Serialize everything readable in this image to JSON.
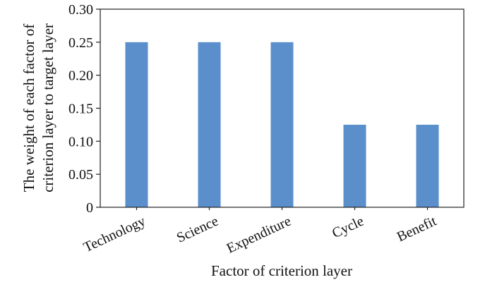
{
  "chart_data": {
    "type": "bar",
    "categories": [
      "Technology",
      "Science",
      "Expenditure",
      "Cycle",
      "Benefit"
    ],
    "values": [
      0.25,
      0.25,
      0.25,
      0.125,
      0.125
    ],
    "xlabel": "Factor of criterion layer",
    "ylabel_lines": [
      "The weight of each factor of",
      "criterion layer to target layer"
    ],
    "ylim": [
      0,
      0.3
    ],
    "yticks": [
      "0",
      "0.05",
      "0.10",
      "0.15",
      "0.20",
      "0.25",
      "0.30"
    ],
    "grid": false,
    "legend": "none",
    "bar_color": "#5b8fcb"
  }
}
